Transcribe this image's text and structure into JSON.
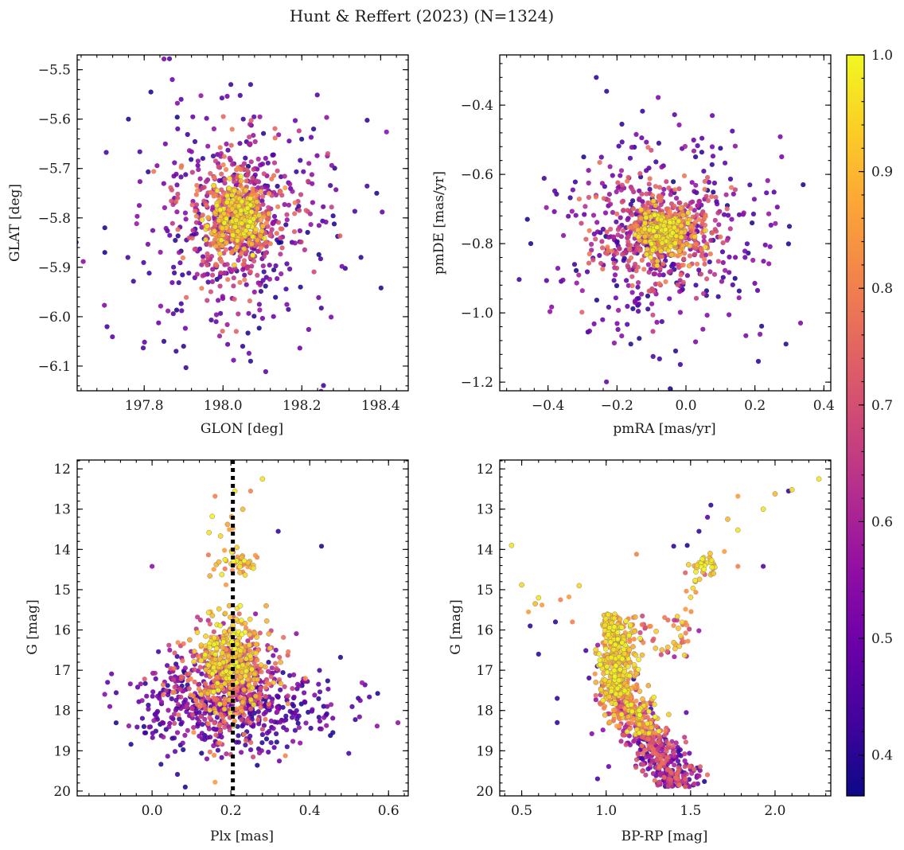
{
  "figure": {
    "title": "Hunt & Reffert (2023) (N=1324)",
    "colormap": "plasma",
    "colorbar": {
      "range": [
        0.365,
        1.0
      ],
      "ticks": [
        0.4,
        0.5,
        0.6,
        0.7,
        0.8,
        0.9,
        1.0
      ],
      "tick_labels": [
        "0.4",
        "0.5",
        "0.6",
        "0.7",
        "0.8",
        "0.9",
        "1.0"
      ]
    }
  },
  "chart_data": [
    {
      "type": "scatter",
      "id": "sky",
      "xlabel": "GLON [deg]",
      "ylabel": "GLAT [deg]",
      "xlim": [
        197.63,
        198.47
      ],
      "ylim": [
        -6.15,
        -5.47
      ],
      "y_inverted": false,
      "xticks": [
        197.8,
        198.0,
        198.2,
        198.4
      ],
      "xtick_labels": [
        "197.8",
        "198.0",
        "198.2",
        "198.4"
      ],
      "yticks": [
        -6.1,
        -6.0,
        -5.9,
        -5.8,
        -5.7,
        -5.6,
        -5.5
      ],
      "ytick_labels": [
        "−6.1",
        "−6.0",
        "−5.9",
        "−5.8",
        "−5.7",
        "−5.6",
        "−5.5"
      ],
      "center": [
        198.04,
        -5.8
      ],
      "core_spread": [
        0.035,
        0.035
      ],
      "mid_spread": [
        0.075,
        0.07
      ],
      "halo_spread": [
        0.15,
        0.13
      ],
      "outliers": [
        [
          197.7,
          -5.82,
          0.38
        ],
        [
          197.7,
          -5.87,
          0.38
        ],
        [
          197.76,
          -5.6,
          0.38
        ],
        [
          198.02,
          -5.53,
          0.42
        ],
        [
          198.07,
          -5.53,
          0.42
        ],
        [
          198.39,
          -5.75,
          0.38
        ],
        [
          198.35,
          -5.88,
          0.4
        ],
        [
          198.05,
          -6.06,
          0.4
        ],
        [
          198.07,
          -6.09,
          0.4
        ],
        [
          197.85,
          -6.05,
          0.4
        ],
        [
          197.9,
          -6.06,
          0.4
        ],
        [
          198.23,
          -5.62,
          0.4
        ]
      ]
    },
    {
      "type": "scatter",
      "id": "proper-motion",
      "xlabel": "pmRA [mas/yr]",
      "ylabel": "pmDE [mas/yr]",
      "xlim": [
        -0.54,
        0.42
      ],
      "ylim": [
        -1.225,
        -0.255
      ],
      "y_inverted": false,
      "xticks": [
        -0.4,
        -0.2,
        0.0,
        0.2,
        0.4
      ],
      "xtick_labels": [
        "−0.4",
        "−0.2",
        "0.0",
        "0.2",
        "0.4"
      ],
      "yticks": [
        -1.2,
        -1.0,
        -0.8,
        -0.6,
        -0.4
      ],
      "ytick_labels": [
        "−1.2",
        "−1.0",
        "−0.8",
        "−0.6",
        "−0.4"
      ],
      "center": [
        -0.07,
        -0.77
      ],
      "core_spread": [
        0.04,
        0.035
      ],
      "mid_spread": [
        0.09,
        0.08
      ],
      "halo_spread": [
        0.17,
        0.16
      ],
      "outliers": [
        [
          -0.26,
          -0.32,
          0.4
        ],
        [
          -0.23,
          -0.36,
          0.4
        ],
        [
          -0.46,
          -0.73,
          0.38
        ],
        [
          -0.45,
          -0.8,
          0.38
        ],
        [
          0.34,
          -0.63,
          0.38
        ],
        [
          0.3,
          -0.75,
          0.4
        ],
        [
          -0.03,
          -1.11,
          0.4
        ],
        [
          0.21,
          -1.14,
          0.4
        ],
        [
          0.29,
          -1.09,
          0.4
        ],
        [
          -0.16,
          -1.09,
          0.4
        ]
      ]
    },
    {
      "type": "scatter",
      "id": "parallax-magnitude",
      "xlabel": "Plx [mas]",
      "ylabel": "G [mag]",
      "xlim": [
        -0.19,
        0.65
      ],
      "ylim": [
        20.12,
        11.78
      ],
      "y_inverted": true,
      "xticks": [
        0.0,
        0.2,
        0.4,
        0.6
      ],
      "xtick_labels": [
        "0.0",
        "0.2",
        "0.4",
        "0.6"
      ],
      "yticks": [
        12,
        13,
        14,
        15,
        16,
        17,
        18,
        19,
        20
      ],
      "ytick_labels": [
        "12",
        "13",
        "14",
        "15",
        "16",
        "17",
        "18",
        "19",
        "20"
      ],
      "reference_line": {
        "x": 0.205,
        "style": "dotted",
        "color": "#000000"
      },
      "outliers": [
        [
          0.28,
          12.25,
          0.97
        ],
        [
          0.21,
          12.55,
          0.97
        ],
        [
          0.16,
          12.68,
          0.8
        ],
        [
          0.25,
          12.55,
          0.8
        ],
        [
          0.32,
          13.55,
          0.4
        ],
        [
          0.43,
          13.92,
          0.38
        ],
        [
          0.0,
          14.42,
          0.55
        ],
        [
          0.16,
          19.78,
          0.85
        ]
      ]
    },
    {
      "type": "scatter",
      "id": "color-magnitude",
      "xlabel": "BP-RP [mag]",
      "ylabel": "G [mag]",
      "xlim": [
        0.37,
        2.33
      ],
      "ylim": [
        20.12,
        11.78
      ],
      "y_inverted": true,
      "xticks": [
        0.5,
        1.0,
        1.5,
        2.0
      ],
      "xtick_labels": [
        "0.5",
        "1.0",
        "1.5",
        "2.0"
      ],
      "yticks": [
        12,
        13,
        14,
        15,
        16,
        17,
        18,
        19,
        20
      ],
      "ytick_labels": [
        "12",
        "13",
        "14",
        "15",
        "16",
        "17",
        "18",
        "19",
        "20"
      ],
      "giant_branch": [
        [
          2.26,
          12.25,
          0.97
        ],
        [
          2.1,
          12.52,
          0.95
        ],
        [
          2.08,
          12.55,
          0.4
        ],
        [
          2.0,
          12.62,
          0.9
        ],
        [
          1.93,
          13.0,
          0.97
        ],
        [
          1.78,
          12.68,
          0.85
        ],
        [
          1.78,
          13.52,
          0.97
        ],
        [
          1.72,
          13.25,
          0.9
        ],
        [
          1.62,
          12.9,
          0.4
        ],
        [
          1.6,
          13.2,
          0.45
        ],
        [
          1.55,
          13.55,
          0.4
        ],
        [
          1.48,
          13.9,
          0.38
        ],
        [
          1.93,
          14.42,
          0.45
        ],
        [
          1.78,
          14.42,
          0.8
        ],
        [
          1.7,
          14.05,
          0.85
        ]
      ],
      "blue_stragglers": [
        [
          0.44,
          13.9,
          0.97
        ],
        [
          0.5,
          14.88,
          0.95
        ],
        [
          0.54,
          15.55,
          0.85
        ],
        [
          0.58,
          15.35,
          0.9
        ],
        [
          0.6,
          15.2,
          0.97
        ],
        [
          0.62,
          15.38,
          0.85
        ],
        [
          0.73,
          15.25,
          0.8
        ],
        [
          0.78,
          15.18,
          0.85
        ],
        [
          0.8,
          15.8,
          0.8
        ],
        [
          0.84,
          14.9,
          0.95
        ],
        [
          0.55,
          15.9,
          0.4
        ],
        [
          0.6,
          16.6,
          0.4
        ],
        [
          0.7,
          15.8,
          0.4
        ],
        [
          0.71,
          17.7,
          0.4
        ],
        [
          0.71,
          18.3,
          0.4
        ],
        [
          1.18,
          14.12,
          0.8
        ],
        [
          1.4,
          13.92,
          0.4
        ]
      ]
    }
  ]
}
